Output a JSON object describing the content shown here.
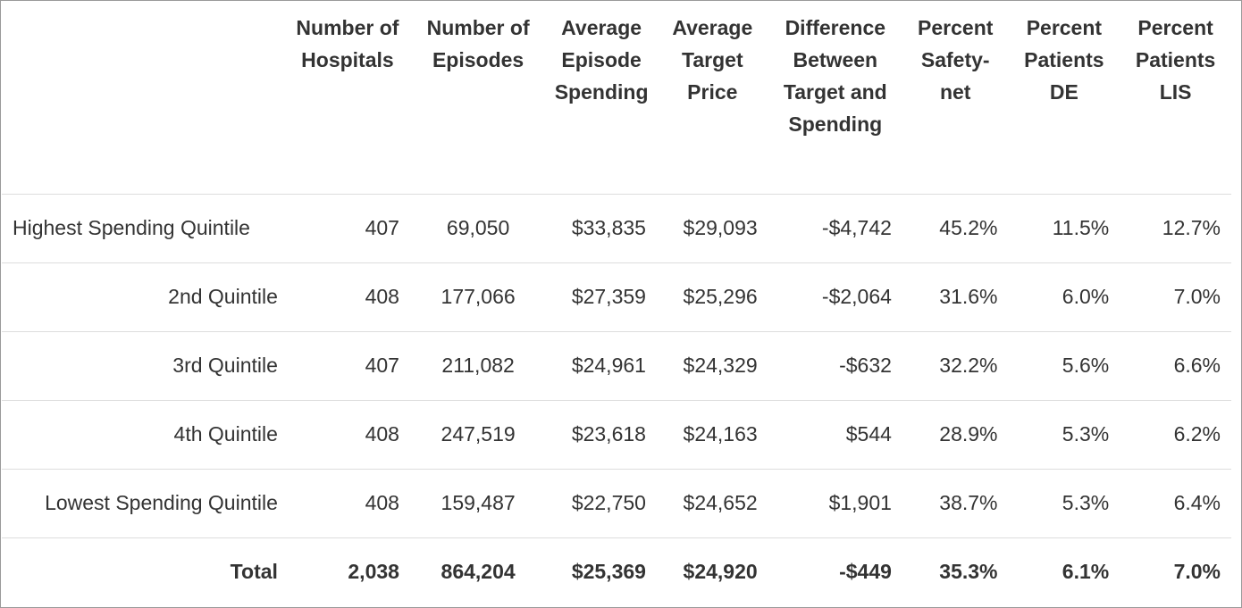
{
  "table": {
    "headers": [
      "",
      "Number of Hospitals",
      "Number of Episodes",
      "Average Episode Spending",
      "Average Target Price",
      "Difference Between Target and Spending",
      "Percent Safety-net",
      "Percent Patients DE",
      "Percent Patients LIS"
    ],
    "rows": [
      [
        "Highest Spending Quintile",
        "407",
        "69,050",
        "$33,835",
        "$29,093",
        "-$4,742",
        "45.2%",
        "11.5%",
        "12.7%"
      ],
      [
        "2nd Quintile",
        "408",
        "177,066",
        "$27,359",
        "$25,296",
        "-$2,064",
        "31.6%",
        "6.0%",
        "7.0%"
      ],
      [
        "3rd Quintile",
        "407",
        "211,082",
        "$24,961",
        "$24,329",
        "-$632",
        "32.2%",
        "5.6%",
        "6.6%"
      ],
      [
        "4th Quintile",
        "408",
        "247,519",
        "$23,618",
        "$24,163",
        "$544",
        "28.9%",
        "5.3%",
        "6.2%"
      ],
      [
        "Lowest Spending Quintile",
        "408",
        "159,487",
        "$22,750",
        "$24,652",
        "$1,901",
        "38.7%",
        "5.3%",
        "6.4%"
      ]
    ],
    "total": [
      "Total",
      "2,038",
      "864,204",
      "$25,369",
      "$24,920",
      "-$449",
      "35.3%",
      "6.1%",
      "7.0%"
    ]
  }
}
